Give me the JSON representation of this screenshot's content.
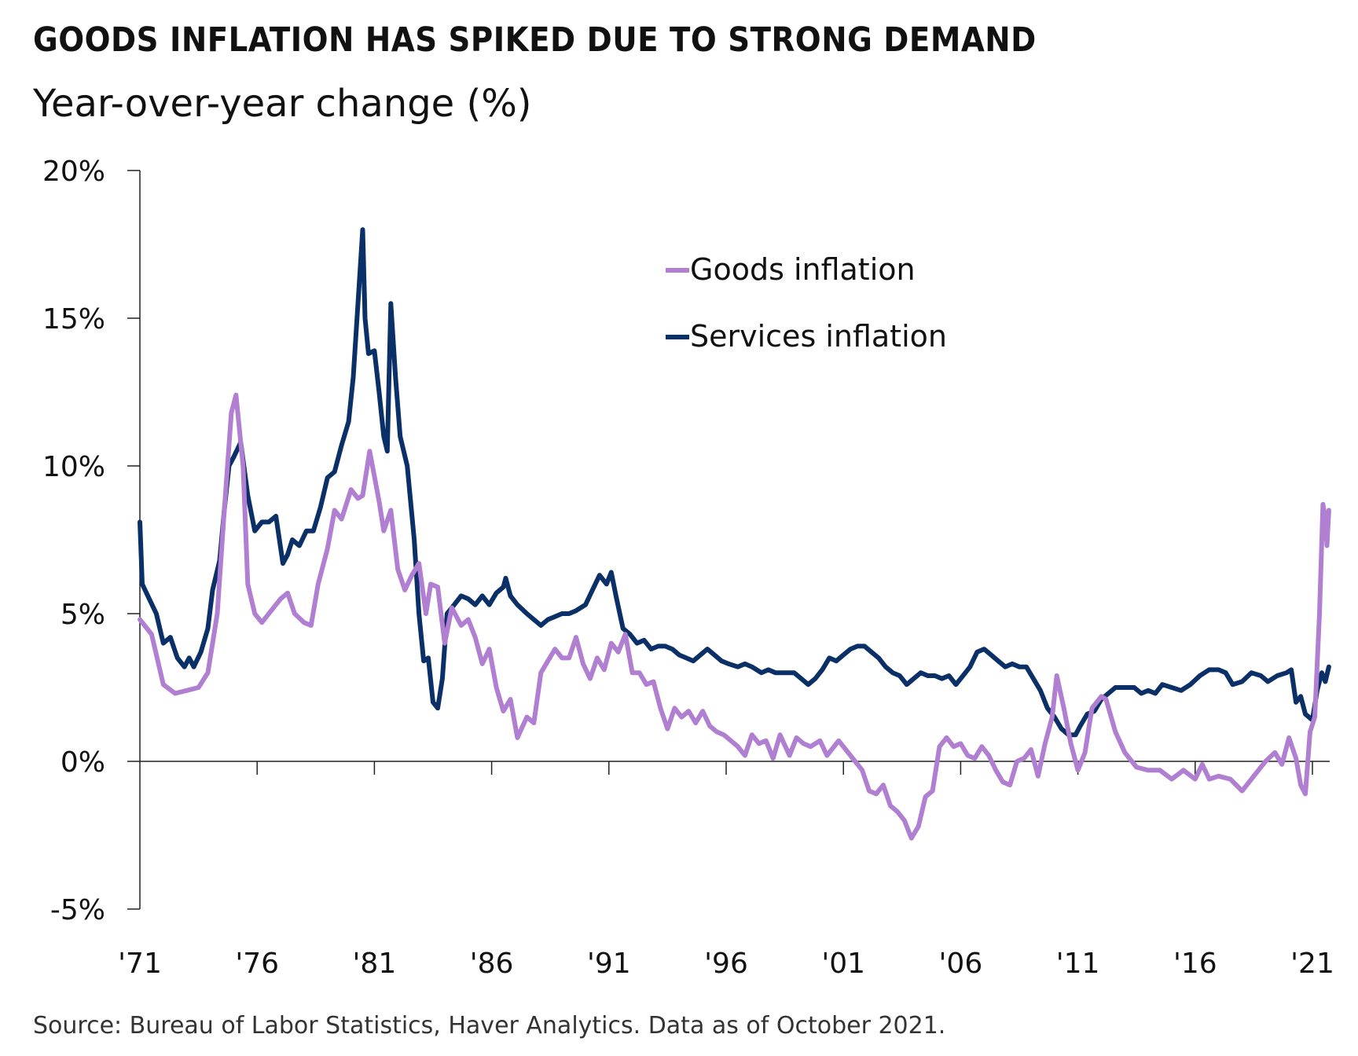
{
  "title": "GOODS INFLATION HAS SPIKED DUE TO STRONG DEMAND",
  "subtitle": "Year-over-year change (%)",
  "source": "Source: Bureau of Labor Statistics, Haver Analytics. Data as of October 2021.",
  "chart_data": {
    "type": "line",
    "title": "GOODS INFLATION HAS SPIKED DUE TO STRONG DEMAND",
    "ylabel": "Year-over-year change (%)",
    "xlabel": "",
    "ylim": [
      -5,
      20
    ],
    "xlim": [
      1971,
      2021.8
    ],
    "yticks": [
      20,
      15,
      10,
      5,
      0,
      -5
    ],
    "ytick_labels": [
      "20%",
      "15%",
      "10%",
      "5%",
      "0%",
      "-5%"
    ],
    "xticks": [
      1971,
      1976,
      1981,
      1986,
      1991,
      1996,
      2001,
      2006,
      2011,
      2016,
      2021
    ],
    "xtick_labels": [
      "'71",
      "'76",
      "'81",
      "'86",
      "'91",
      "'96",
      "'01",
      "'06",
      "'11",
      "'16",
      "'21"
    ],
    "grid": false,
    "legend_position": "top-right",
    "series": [
      {
        "name": "Goods inflation",
        "color": "#B07FD1",
        "x": [
          1971.0,
          1971.5,
          1972.0,
          1972.5,
          1973.0,
          1973.5,
          1973.9,
          1974.3,
          1974.6,
          1974.9,
          1975.1,
          1975.4,
          1975.6,
          1975.9,
          1976.2,
          1976.6,
          1977.0,
          1977.3,
          1977.6,
          1978.0,
          1978.3,
          1978.6,
          1979.0,
          1979.3,
          1979.6,
          1980.0,
          1980.3,
          1980.5,
          1980.8,
          1981.2,
          1981.4,
          1981.7,
          1982.0,
          1982.3,
          1982.6,
          1982.9,
          1983.2,
          1983.4,
          1983.7,
          1984.0,
          1984.3,
          1984.7,
          1985.0,
          1985.3,
          1985.6,
          1985.9,
          1986.2,
          1986.5,
          1986.8,
          1987.1,
          1987.5,
          1987.8,
          1988.1,
          1988.4,
          1988.7,
          1989.0,
          1989.3,
          1989.6,
          1989.9,
          1990.2,
          1990.5,
          1990.8,
          1991.1,
          1991.4,
          1991.7,
          1992.0,
          1992.3,
          1992.6,
          1992.9,
          1993.2,
          1993.5,
          1993.8,
          1994.1,
          1994.4,
          1994.7,
          1995.0,
          1995.3,
          1995.6,
          1995.9,
          1996.2,
          1996.5,
          1996.8,
          1997.1,
          1997.4,
          1997.7,
          1998.0,
          1998.3,
          1998.7,
          1999.0,
          1999.3,
          1999.6,
          2000.0,
          2000.3,
          2000.8,
          2001.2,
          2001.5,
          2001.8,
          2002.1,
          2002.4,
          2002.7,
          2003.0,
          2003.3,
          2003.6,
          2003.9,
          2004.2,
          2004.5,
          2004.8,
          2005.1,
          2005.4,
          2005.7,
          2006.0,
          2006.3,
          2006.6,
          2006.9,
          2007.2,
          2007.5,
          2007.8,
          2008.1,
          2008.4,
          2008.7,
          2009.0,
          2009.3,
          2009.6,
          2009.9,
          2010.1,
          2010.4,
          2010.7,
          2011.0,
          2011.3,
          2011.6,
          2012.0,
          2012.2,
          2012.6,
          2013.0,
          2013.5,
          2014.0,
          2014.5,
          2015.0,
          2015.5,
          2016.0,
          2016.3,
          2016.6,
          2017.0,
          2017.5,
          2018.0,
          2018.5,
          2019.0,
          2019.4,
          2019.7,
          2020.0,
          2020.3,
          2020.5,
          2020.7,
          2020.9,
          2021.1,
          2021.3,
          2021.45,
          2021.55,
          2021.62,
          2021.7
        ],
        "values": [
          4.8,
          4.3,
          2.6,
          2.3,
          2.4,
          2.5,
          3.0,
          5.0,
          8.5,
          11.8,
          12.4,
          10.0,
          6.0,
          5.0,
          4.7,
          5.1,
          5.5,
          5.7,
          5.0,
          4.7,
          4.6,
          6.0,
          7.2,
          8.5,
          8.2,
          9.2,
          8.9,
          9.0,
          10.5,
          8.8,
          7.8,
          8.5,
          6.5,
          5.8,
          6.3,
          6.7,
          5.0,
          6.0,
          5.9,
          4.0,
          5.2,
          4.6,
          4.8,
          4.2,
          3.3,
          3.8,
          2.5,
          1.7,
          2.1,
          0.8,
          1.5,
          1.3,
          3.0,
          3.4,
          3.8,
          3.5,
          3.5,
          4.2,
          3.3,
          2.8,
          3.5,
          3.1,
          4.0,
          3.7,
          4.3,
          3.0,
          3.0,
          2.6,
          2.7,
          1.8,
          1.1,
          1.8,
          1.5,
          1.7,
          1.3,
          1.7,
          1.2,
          1.0,
          0.9,
          0.7,
          0.5,
          0.2,
          0.9,
          0.6,
          0.7,
          0.1,
          0.9,
          0.2,
          0.8,
          0.6,
          0.5,
          0.7,
          0.2,
          0.7,
          0.3,
          0.0,
          -0.3,
          -1.0,
          -1.1,
          -0.8,
          -1.5,
          -1.7,
          -2.0,
          -2.6,
          -2.2,
          -1.2,
          -1.0,
          0.5,
          0.8,
          0.5,
          0.6,
          0.2,
          0.1,
          0.5,
          0.2,
          -0.3,
          -0.7,
          -0.8,
          0.0,
          0.1,
          0.4,
          -0.5,
          0.6,
          1.5,
          2.9,
          1.8,
          0.6,
          -0.3,
          0.3,
          1.8,
          2.2,
          2.1,
          1.0,
          0.3,
          -0.2,
          -0.3,
          -0.3,
          -0.6,
          -0.3,
          -0.6,
          -0.1,
          -0.6,
          -0.5,
          -0.6,
          -1.0,
          -0.5,
          0.0,
          0.3,
          -0.1,
          0.8,
          0.1,
          -0.8,
          -1.1,
          1.0,
          1.5,
          5.0,
          8.7,
          8.2,
          7.3,
          8.5
        ]
      },
      {
        "name": "Services inflation",
        "color": "#0B3068",
        "x": [
          1971.0,
          1971.1,
          1971.4,
          1971.7,
          1972.0,
          1972.3,
          1972.6,
          1972.9,
          1973.1,
          1973.3,
          1973.6,
          1973.9,
          1974.1,
          1974.4,
          1974.6,
          1974.8,
          1975.0,
          1975.3,
          1975.6,
          1975.9,
          1976.2,
          1976.5,
          1976.8,
          1977.1,
          1977.3,
          1977.5,
          1977.8,
          1978.1,
          1978.4,
          1978.7,
          1979.0,
          1979.3,
          1979.6,
          1979.9,
          1980.1,
          1980.3,
          1980.5,
          1980.6,
          1980.75,
          1981.0,
          1981.2,
          1981.4,
          1981.55,
          1981.7,
          1981.9,
          1982.1,
          1982.4,
          1982.7,
          1982.9,
          1983.1,
          1983.3,
          1983.5,
          1983.7,
          1983.9,
          1984.1,
          1984.4,
          1984.7,
          1985.0,
          1985.3,
          1985.6,
          1985.9,
          1986.2,
          1986.5,
          1986.6,
          1986.8,
          1987.1,
          1987.5,
          1987.8,
          1988.1,
          1988.4,
          1988.7,
          1989.0,
          1989.3,
          1989.6,
          1990.0,
          1990.3,
          1990.6,
          1990.9,
          1991.1,
          1991.3,
          1991.6,
          1991.9,
          1992.2,
          1992.5,
          1992.8,
          1993.1,
          1993.4,
          1993.7,
          1994.0,
          1994.3,
          1994.6,
          1994.9,
          1995.2,
          1995.5,
          1995.8,
          1996.1,
          1996.5,
          1996.8,
          1997.1,
          1997.5,
          1997.8,
          1998.1,
          1998.5,
          1998.9,
          1999.2,
          1999.5,
          1999.8,
          2000.1,
          2000.4,
          2000.7,
          2001.0,
          2001.3,
          2001.6,
          2001.9,
          2002.2,
          2002.5,
          2002.8,
          2003.1,
          2003.4,
          2003.7,
          2004.0,
          2004.3,
          2004.6,
          2004.9,
          2005.2,
          2005.5,
          2005.8,
          2006.1,
          2006.4,
          2006.7,
          2007.0,
          2007.3,
          2007.6,
          2007.9,
          2008.2,
          2008.5,
          2008.8,
          2009.1,
          2009.4,
          2009.7,
          2010.0,
          2010.3,
          2010.6,
          2010.9,
          2011.1,
          2011.4,
          2011.7,
          2012.0,
          2012.3,
          2012.6,
          2013.0,
          2013.4,
          2013.7,
          2014.0,
          2014.3,
          2014.6,
          2015.0,
          2015.4,
          2015.8,
          2016.2,
          2016.6,
          2017.0,
          2017.3,
          2017.6,
          2018.0,
          2018.4,
          2018.8,
          2019.1,
          2019.5,
          2019.9,
          2020.1,
          2020.3,
          2020.5,
          2020.7,
          2021.0,
          2021.2,
          2021.4,
          2021.55,
          2021.7
        ],
        "values": [
          8.1,
          6.0,
          5.5,
          5.0,
          4.0,
          4.2,
          3.5,
          3.2,
          3.5,
          3.2,
          3.7,
          4.5,
          5.8,
          6.8,
          8.5,
          10.0,
          10.3,
          10.8,
          9.0,
          7.8,
          8.1,
          8.1,
          8.3,
          6.7,
          7.0,
          7.5,
          7.3,
          7.8,
          7.8,
          8.6,
          9.6,
          9.8,
          10.7,
          11.5,
          13.0,
          15.5,
          18.0,
          15.0,
          13.8,
          13.9,
          12.5,
          11.0,
          10.5,
          15.5,
          13.0,
          11.0,
          10.0,
          7.5,
          5.0,
          3.4,
          3.5,
          2.0,
          1.8,
          2.8,
          5.0,
          5.3,
          5.6,
          5.5,
          5.3,
          5.6,
          5.3,
          5.7,
          5.9,
          6.2,
          5.6,
          5.3,
          5.0,
          4.8,
          4.6,
          4.8,
          4.9,
          5.0,
          5.0,
          5.1,
          5.3,
          5.8,
          6.3,
          6.0,
          6.4,
          5.6,
          4.5,
          4.3,
          4.0,
          4.1,
          3.8,
          3.9,
          3.9,
          3.8,
          3.6,
          3.5,
          3.4,
          3.6,
          3.8,
          3.6,
          3.4,
          3.3,
          3.2,
          3.3,
          3.2,
          3.0,
          3.1,
          3.0,
          3.0,
          3.0,
          2.8,
          2.6,
          2.8,
          3.1,
          3.5,
          3.4,
          3.6,
          3.8,
          3.9,
          3.9,
          3.7,
          3.5,
          3.2,
          3.0,
          2.9,
          2.6,
          2.8,
          3.0,
          2.9,
          2.9,
          2.8,
          2.9,
          2.6,
          2.9,
          3.2,
          3.7,
          3.8,
          3.6,
          3.4,
          3.2,
          3.3,
          3.2,
          3.2,
          2.8,
          2.4,
          1.8,
          1.5,
          1.1,
          0.9,
          0.9,
          1.2,
          1.6,
          1.7,
          2.1,
          2.3,
          2.5,
          2.5,
          2.5,
          2.3,
          2.4,
          2.3,
          2.6,
          2.5,
          2.4,
          2.6,
          2.9,
          3.1,
          3.1,
          3.0,
          2.6,
          2.7,
          3.0,
          2.9,
          2.7,
          2.9,
          3.0,
          3.1,
          2.0,
          2.2,
          1.6,
          1.4,
          2.4,
          3.0,
          2.7,
          3.2
        ]
      }
    ]
  }
}
